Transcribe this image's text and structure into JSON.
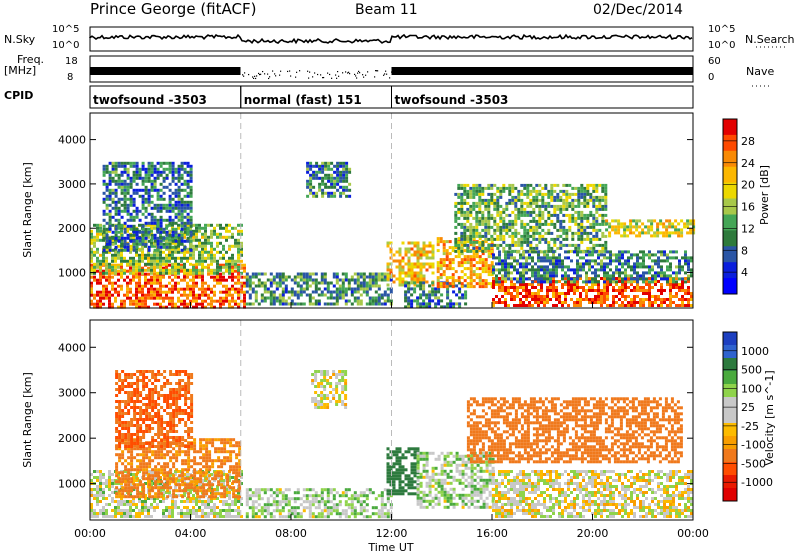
{
  "header": {
    "station": "Prince George (fitACF)",
    "beam": "Beam 11",
    "date": "02/Dec/2014"
  },
  "strip": {
    "nsky_label": "N.Sky",
    "nsky_ticks": [
      "10^5",
      "10^0"
    ],
    "nsearch_label": "N.Search",
    "nsearch_ticks": [
      "10^5",
      "10^0"
    ],
    "freq_label": "Freq.",
    "freq_unit": "[MHz]",
    "freq_ticks": [
      "18",
      "8"
    ],
    "nave_label": "Nave",
    "nave_ticks": [
      "60",
      "0"
    ],
    "cpid_label": "CPID"
  },
  "cpid_segments": [
    {
      "label": "twofsound -3503",
      "start_hour": 0,
      "end_hour": 6
    },
    {
      "label": "normal (fast) 151",
      "start_hour": 6,
      "end_hour": 12
    },
    {
      "label": "twofsound -3503",
      "start_hour": 12,
      "end_hour": 24
    }
  ],
  "x_axis": {
    "title": "Time UT",
    "ticks": [
      "00:00",
      "04:00",
      "08:00",
      "12:00",
      "16:00",
      "20:00",
      "00:00"
    ]
  },
  "chart_data": [
    {
      "type": "heatmap",
      "parameter": "power",
      "ylabel": "Slant Range [km]",
      "yticks": [
        "1000",
        "2000",
        "3000",
        "4000"
      ],
      "ylim": [
        200,
        4600
      ],
      "xlim": [
        0,
        24
      ],
      "colorbar_label": "Power [dB]",
      "colorbar_ticks": [
        "28",
        "24",
        "20",
        "16",
        "12",
        "8",
        "4"
      ],
      "colorbar_colors": [
        "#e30000",
        "#ff4a00",
        "#f98a05",
        "#fcb700",
        "#ecd800",
        "#a8c84a",
        "#44a656",
        "#2e7a3c",
        "#2a55a5",
        "#0a1edc",
        "#0000ff"
      ],
      "regions": [
        {
          "t0": 0.0,
          "t1": 6.2,
          "r0": 250,
          "r1": 1200,
          "level": 26
        },
        {
          "t0": 0.0,
          "t1": 6.0,
          "r0": 1000,
          "r1": 2100,
          "level": 14
        },
        {
          "t0": 0.5,
          "t1": 4.0,
          "r0": 1500,
          "r1": 3500,
          "level": 8
        },
        {
          "t0": 8.6,
          "t1": 10.3,
          "r0": 2700,
          "r1": 3500,
          "level": 9
        },
        {
          "t0": 6.2,
          "t1": 12.0,
          "r0": 300,
          "r1": 1000,
          "level": 10
        },
        {
          "t0": 11.8,
          "t1": 13.6,
          "r0": 700,
          "r1": 1700,
          "level": 20
        },
        {
          "t0": 12.5,
          "t1": 15.0,
          "r0": 200,
          "r1": 800,
          "level": 9
        },
        {
          "t0": 13.8,
          "t1": 16.0,
          "r0": 700,
          "r1": 1800,
          "level": 22
        },
        {
          "t0": 14.5,
          "t1": 20.5,
          "r0": 1500,
          "r1": 3000,
          "level": 12
        },
        {
          "t0": 16.0,
          "t1": 24.0,
          "r0": 250,
          "r1": 900,
          "level": 27
        },
        {
          "t0": 16.0,
          "t1": 24.0,
          "r0": 800,
          "r1": 1500,
          "level": 9
        },
        {
          "t0": 20.5,
          "t1": 24.0,
          "r0": 1800,
          "r1": 2200,
          "level": 18
        }
      ]
    },
    {
      "type": "heatmap",
      "parameter": "velocity",
      "ylabel": "Slant Range [km]",
      "yticks": [
        "1000",
        "2000",
        "3000",
        "4000"
      ],
      "ylim": [
        200,
        4600
      ],
      "xlim": [
        0,
        24
      ],
      "colorbar_label": "Velocity [m s^-1]",
      "colorbar_ticks": [
        "1000",
        "500",
        "100",
        "25",
        "-25",
        "-100",
        "-500",
        "-1000"
      ],
      "colorbar_colors": [
        "#1d3fc0",
        "#2f63cf",
        "#2d7a3e",
        "#4aaa3e",
        "#8fd34b",
        "#c8c8c8",
        "#c8c8c8",
        "#fcbb00",
        "#f99e00",
        "#f0791c",
        "#ff4d00",
        "#ea1a00",
        "#e00000"
      ],
      "regions": [
        {
          "t0": 0.0,
          "t1": 6.0,
          "r0": 250,
          "r1": 1300,
          "level": 25
        },
        {
          "t0": 1.0,
          "t1": 6.0,
          "r0": 700,
          "r1": 2000,
          "level": -150
        },
        {
          "t0": 1.0,
          "t1": 4.0,
          "r0": 1800,
          "r1": 3500,
          "level": -300
        },
        {
          "t0": 8.8,
          "t1": 10.2,
          "r0": 2700,
          "r1": 3500,
          "level": 10
        },
        {
          "t0": 6.2,
          "t1": 12.0,
          "r0": 300,
          "r1": 900,
          "level": 60
        },
        {
          "t0": 11.8,
          "t1": 13.0,
          "r0": 800,
          "r1": 1800,
          "level": 400
        },
        {
          "t0": 13.0,
          "t1": 16.0,
          "r0": 500,
          "r1": 1700,
          "level": 60
        },
        {
          "t0": 16.0,
          "t1": 24.0,
          "r0": 250,
          "r1": 1300,
          "level": 0
        },
        {
          "t0": 15.0,
          "t1": 23.5,
          "r0": 1500,
          "r1": 2900,
          "level": -200
        }
      ]
    }
  ]
}
